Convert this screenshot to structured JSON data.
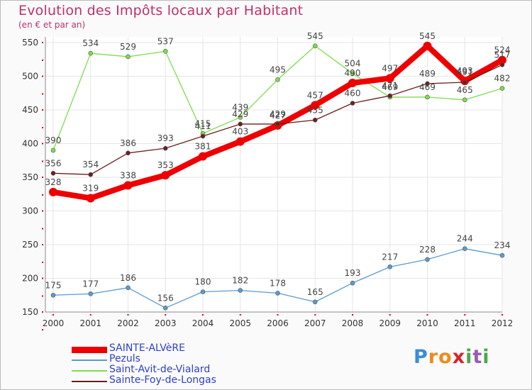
{
  "chart_data": {
    "type": "line",
    "title": "Evolution des Impôts locaux par Habitant",
    "subtitle": "(en € et par an)",
    "xlabel": "",
    "ylabel": "",
    "x": [
      "2000",
      "2001",
      "2002",
      "2003",
      "2004",
      "2005",
      "2006",
      "2007",
      "2008",
      "2009",
      "2010",
      "2011",
      "2012"
    ],
    "ylim": [
      150,
      550
    ],
    "yticks": [
      150,
      200,
      250,
      300,
      350,
      400,
      450,
      500,
      550
    ],
    "grid": true,
    "series": [
      {
        "name": "SAINTE-ALVèRE",
        "color": "#ee0000",
        "values": [
          328,
          319,
          338,
          353,
          381,
          403,
          427,
          457,
          490,
          497,
          545,
          493,
          524
        ]
      },
      {
        "name": "Pezuls",
        "color": "#5a9bd0",
        "values": [
          175,
          177,
          186,
          156,
          180,
          182,
          178,
          165,
          193,
          217,
          228,
          244,
          234
        ]
      },
      {
        "name": "Saint-Avit-de-Vialard",
        "color": "#7edc4e",
        "values": [
          390,
          534,
          529,
          537,
          415,
          439,
          495,
          545,
          504,
          469,
          469,
          465,
          482
        ]
      },
      {
        "name": "Sainte-Foy-de-Longas",
        "color": "#6b1f1f",
        "values": [
          356,
          354,
          386,
          393,
          411,
          429,
          429,
          435,
          460,
          471,
          489,
          491,
          517
        ]
      }
    ]
  },
  "logo": {
    "letters": [
      "P",
      "r",
      "o",
      "x",
      "i",
      "t",
      "i"
    ],
    "colors": [
      "#3a8ed8",
      "#f08a1c",
      "#f08a1c",
      "#d8232a",
      "#4aa84a",
      "#9b59b6",
      "#4aa84a"
    ]
  }
}
